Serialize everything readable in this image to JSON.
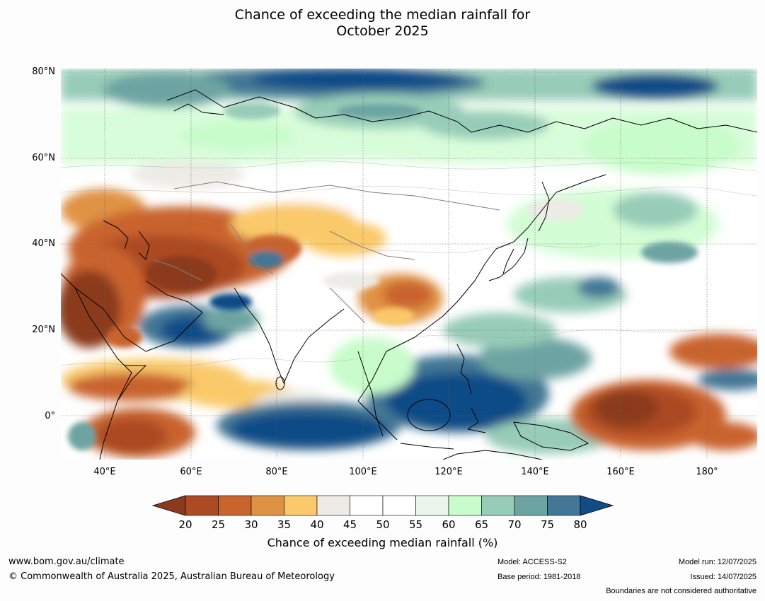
{
  "title_line1": "Chance of exceeding the median rainfall for",
  "title_line2": "October 2025",
  "lat_labels": [
    "80°N",
    "60°N",
    "40°N",
    "20°N",
    "0°"
  ],
  "lon_labels": [
    "40°E",
    "60°E",
    "80°E",
    "100°E",
    "120°E",
    "140°E",
    "160°E",
    "180°"
  ],
  "legend": {
    "title": "Chance of exceeding median rainfall (%)",
    "ticks": [
      "20",
      "25",
      "30",
      "35",
      "40",
      "45",
      "50",
      "55",
      "60",
      "65",
      "70",
      "75",
      "80"
    ],
    "colors": [
      "#8b3a1e",
      "#ac4a23",
      "#c9642f",
      "#e09244",
      "#fac96b",
      "#ecebe5",
      "#ffffff",
      "#ffffff",
      "#eaf6ec",
      "#c8fcca",
      "#97ccb8",
      "#6da4a3",
      "#437795",
      "#114c87"
    ]
  },
  "footer": {
    "url": "www.bom.gov.au/climate",
    "copyright": "© Commonwealth of Australia 2025, Australian Bureau of Meteorology",
    "model": "Model: ACCESS-S2",
    "base_period": "Base period: 1981-2018",
    "model_run": "Model run: 12/07/2025",
    "issued": "Issued: 14/07/2025",
    "disclaimer": "Boundaries are not considered authoritative"
  }
}
